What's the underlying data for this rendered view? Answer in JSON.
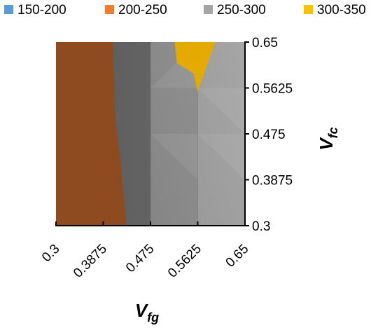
{
  "chart_data": {
    "type": "contour",
    "title": "",
    "legend": {
      "placement": "top",
      "entries": [
        {
          "label": "150-200",
          "color": "#5B9BD5"
        },
        {
          "label": "200-250",
          "color": "#ED7D31"
        },
        {
          "label": "250-300",
          "color": "#A5A5A5"
        },
        {
          "label": "300-350",
          "color": "#FFC000"
        }
      ]
    },
    "x_axis": {
      "title": "V",
      "title_sub": "fg",
      "ticks": [
        "0.3",
        "0.3875",
        "0.475",
        "0.5625",
        "0.65"
      ],
      "range": [
        0.3,
        0.65
      ]
    },
    "y_axis": {
      "title": "V",
      "title_sub": "fc",
      "ticks": [
        "0.3",
        "0.3875",
        "0.475",
        "0.5625",
        "0.65"
      ],
      "range": [
        0.3,
        0.65
      ],
      "position": "right"
    },
    "x_values": [
      0.3,
      0.3875,
      0.475,
      0.5625,
      0.65
    ],
    "y_values": [
      0.3,
      0.3875,
      0.475,
      0.5625,
      0.65
    ],
    "regions": [
      {
        "band": "150-200",
        "color": "#3A6EA5",
        "polygon": [
          [
            0.3,
            0.3
          ],
          [
            0.3,
            0.42
          ],
          [
            0.3045,
            0.3
          ]
        ]
      },
      {
        "band": "200-250",
        "color": "#8E4B1F",
        "polygon": [
          [
            0.3,
            0.3
          ],
          [
            0.3,
            0.65
          ],
          [
            0.405,
            0.65
          ],
          [
            0.41,
            0.5
          ],
          [
            0.42,
            0.42
          ],
          [
            0.425,
            0.36
          ],
          [
            0.43,
            0.3
          ]
        ]
      },
      {
        "band": "300-350",
        "color": "#E5AA00",
        "polygon": [
          [
            0.52,
            0.65
          ],
          [
            0.524,
            0.61
          ],
          [
            0.555,
            0.59
          ],
          [
            0.562,
            0.555
          ],
          [
            0.595,
            0.65
          ]
        ]
      }
    ]
  }
}
